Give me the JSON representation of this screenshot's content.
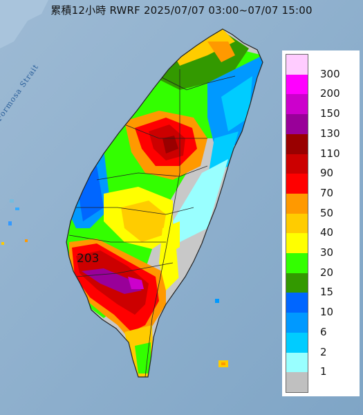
{
  "title": "累積12小時 RWRF 2025/07/07 03:00~07/07 15:00",
  "map": {
    "strait_label": "Formosa Strait",
    "max_value_label": "203",
    "colors": {
      "sea": "#8fb2d0",
      "land_no_rain": "#c8c8c8",
      "county_border": "#222222"
    }
  },
  "legend": {
    "labels": [
      "300",
      "200",
      "150",
      "130",
      "110",
      "90",
      "70",
      "50",
      "40",
      "30",
      "20",
      "15",
      "10",
      "6",
      "2",
      "1"
    ],
    "colors": [
      "#ffccff",
      "#ff00ff",
      "#cc00cc",
      "#990099",
      "#990000",
      "#cc0000",
      "#ff0000",
      "#ff9900",
      "#ffcc00",
      "#ffff00",
      "#33ff00",
      "#339900",
      "#0066ff",
      "#0099ff",
      "#00ccff",
      "#99ffff",
      "#c0c0c0"
    ]
  }
}
